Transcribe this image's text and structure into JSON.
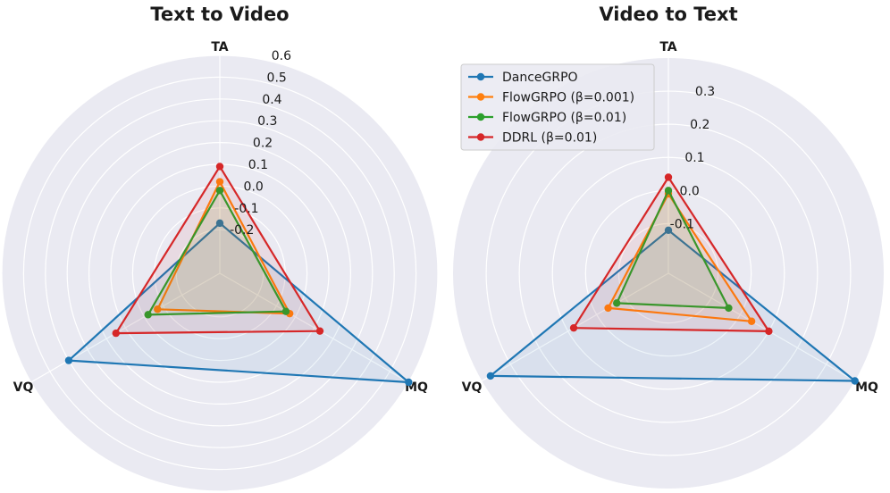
{
  "chart_data": [
    {
      "type": "radar",
      "title": "Text to Video",
      "axes": [
        "TA",
        "MQ",
        "VQ"
      ],
      "rlim": [
        -0.4,
        0.6
      ],
      "rticks": [
        "-0.2",
        "-0.1",
        "0.0",
        "0.1",
        "0.2",
        "0.3",
        "0.4",
        "0.5",
        "0.6"
      ],
      "tick_values": [
        -0.2,
        -0.1,
        0.0,
        0.1,
        0.2,
        0.3,
        0.4,
        0.5,
        0.6
      ],
      "grid": true,
      "series": [
        {
          "name": "DanceGRPO",
          "color": "#1f77b4",
          "values": [
            -0.17,
            0.6,
            0.4
          ]
        },
        {
          "name": "FlowGRPO (β=0.001)",
          "color": "#ff7f0e",
          "values": [
            0.02,
            -0.03,
            -0.07
          ]
        },
        {
          "name": "FlowGRPO (β=0.01)",
          "color": "#2ca02c",
          "values": [
            -0.02,
            -0.05,
            -0.02
          ]
        },
        {
          "name": "DDRL (β=0.01)",
          "color": "#d62728",
          "values": [
            0.09,
            0.13,
            0.15
          ]
        }
      ]
    },
    {
      "type": "radar",
      "title": "Video to Text",
      "axes": [
        "TA",
        "MQ",
        "VQ"
      ],
      "rlim": [
        -0.25,
        0.4
      ],
      "rticks": [
        "-0.1",
        "0.0",
        "0.1",
        "0.2",
        "0.3"
      ],
      "tick_values": [
        -0.1,
        0.0,
        0.1,
        0.2,
        0.3
      ],
      "grid": true,
      "legend_position": "upper-left",
      "series": [
        {
          "name": "DanceGRPO",
          "color": "#1f77b4",
          "values": [
            -0.12,
            0.4,
            0.37
          ]
        },
        {
          "name": "FlowGRPO (β=0.001)",
          "color": "#ff7f0e",
          "values": [
            -0.01,
            0.04,
            -0.04
          ]
        },
        {
          "name": "FlowGRPO (β=0.01)",
          "color": "#2ca02c",
          "values": [
            0.0,
            -0.04,
            -0.07
          ]
        },
        {
          "name": "DDRL (β=0.01)",
          "color": "#d62728",
          "values": [
            0.04,
            0.1,
            0.08
          ]
        }
      ]
    }
  ]
}
